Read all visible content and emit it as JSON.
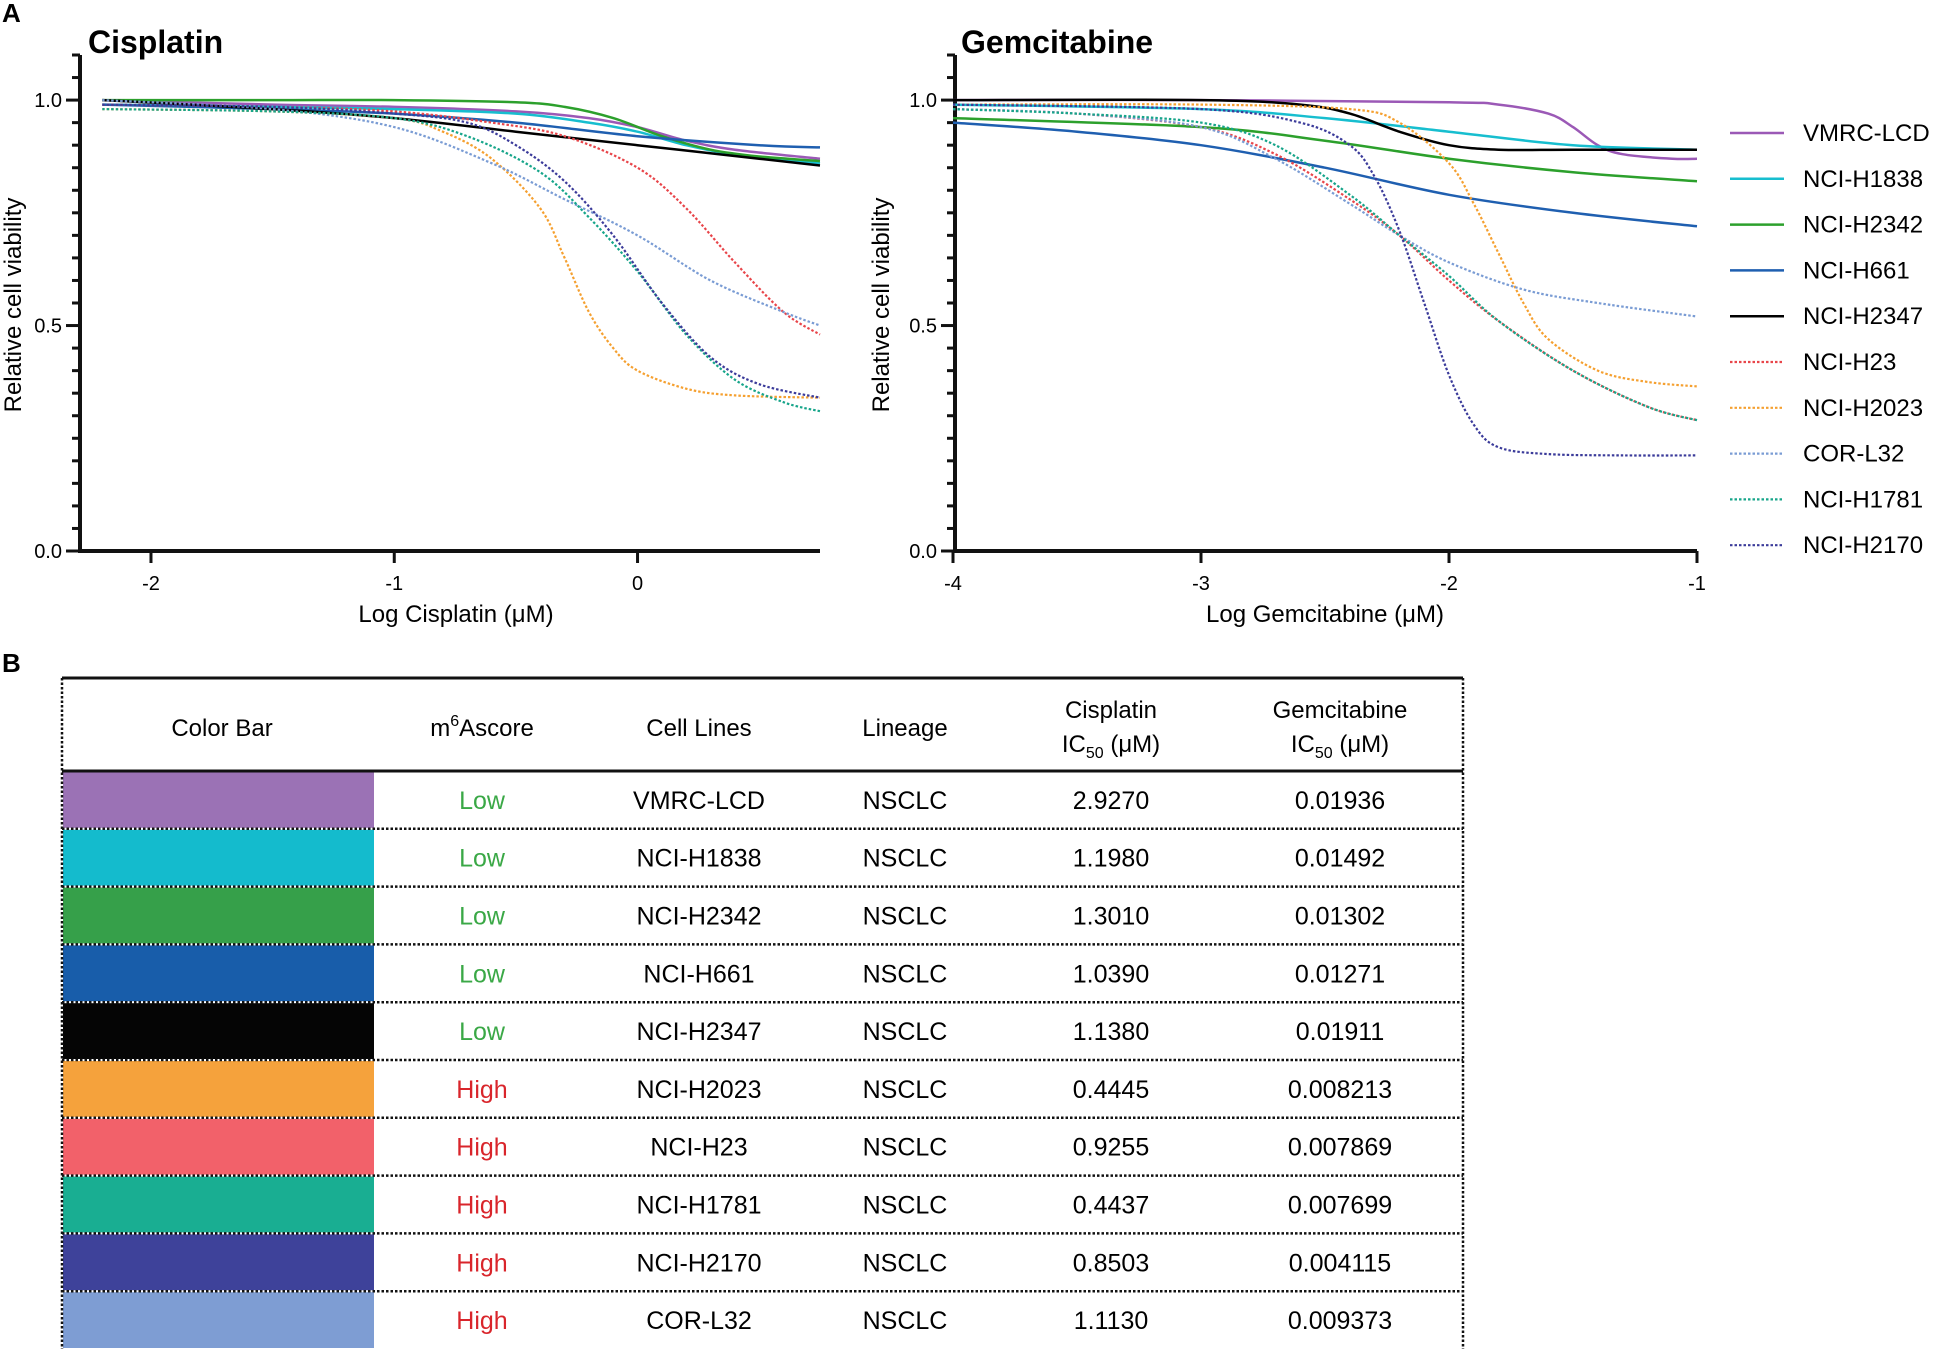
{
  "panels": {
    "a": "A",
    "b": "B"
  },
  "chart_data": [
    {
      "type": "line",
      "title": "Cisplatin",
      "xlabel": "Log Cisplatin (μM)",
      "ylabel": "Relative cell viability",
      "xlim": [
        -2.3,
        0.75
      ],
      "ylim": [
        0,
        1.1
      ],
      "xticks": [
        -2,
        -1,
        0
      ],
      "xtick_labels": [
        "-2",
        "-1",
        "0"
      ],
      "yticks": [
        0,
        0.5,
        1.0
      ],
      "ytick_labels": [
        "0.0",
        "0.5",
        "1.0"
      ],
      "series": [
        {
          "name": "VMRC-LCD",
          "x": [
            -2.2,
            -1.5,
            -1.0,
            -0.5,
            -0.2,
            0,
            0.2,
            0.4,
            0.75
          ],
          "y": [
            1.0,
            0.99,
            0.985,
            0.975,
            0.96,
            0.94,
            0.91,
            0.89,
            0.87
          ]
        },
        {
          "name": "NCI-H1838",
          "x": [
            -2.2,
            -1.5,
            -1.0,
            -0.5,
            -0.2,
            0,
            0.2,
            0.4,
            0.75
          ],
          "y": [
            0.99,
            0.985,
            0.98,
            0.97,
            0.95,
            0.93,
            0.9,
            0.88,
            0.86
          ]
        },
        {
          "name": "NCI-H2342",
          "x": [
            -2.2,
            -1.5,
            -1.0,
            -0.5,
            -0.3,
            -0.1,
            0.1,
            0.3,
            0.5,
            0.75
          ],
          "y": [
            1.0,
            1.0,
            1.0,
            0.995,
            0.985,
            0.96,
            0.92,
            0.89,
            0.875,
            0.865
          ]
        },
        {
          "name": "NCI-H661",
          "x": [
            -2.2,
            -1.5,
            -1.0,
            -0.5,
            0,
            0.5,
            0.75
          ],
          "y": [
            0.99,
            0.98,
            0.97,
            0.95,
            0.92,
            0.9,
            0.895
          ]
        },
        {
          "name": "NCI-H2347",
          "x": [
            -2.2,
            -1.5,
            -1.0,
            -0.5,
            0,
            0.5,
            0.75
          ],
          "y": [
            1.0,
            0.98,
            0.96,
            0.93,
            0.9,
            0.87,
            0.855
          ]
        },
        {
          "name": "NCI-H23",
          "x": [
            -2.2,
            -1.5,
            -1.0,
            -0.6,
            -0.3,
            0,
            0.2,
            0.4,
            0.6,
            0.75
          ],
          "y": [
            0.99,
            0.985,
            0.975,
            0.95,
            0.92,
            0.85,
            0.76,
            0.64,
            0.53,
            0.48
          ]
        },
        {
          "name": "NCI-H2023",
          "x": [
            -2.2,
            -1.5,
            -1.0,
            -0.8,
            -0.6,
            -0.4,
            -0.3,
            -0.2,
            -0.1,
            0,
            0.2,
            0.4,
            0.75
          ],
          "y": [
            0.98,
            0.975,
            0.96,
            0.93,
            0.87,
            0.76,
            0.65,
            0.53,
            0.45,
            0.4,
            0.36,
            0.345,
            0.34
          ]
        },
        {
          "name": "COR-L32",
          "x": [
            -2.2,
            -1.5,
            -1.0,
            -0.6,
            -0.3,
            0,
            0.3,
            0.6,
            0.75
          ],
          "y": [
            1.0,
            0.98,
            0.94,
            0.86,
            0.78,
            0.7,
            0.6,
            0.53,
            0.5
          ]
        },
        {
          "name": "NCI-H1781",
          "x": [
            -2.2,
            -1.5,
            -1.0,
            -0.7,
            -0.4,
            -0.2,
            0,
            0.2,
            0.4,
            0.6,
            0.75
          ],
          "y": [
            0.98,
            0.975,
            0.96,
            0.92,
            0.84,
            0.74,
            0.62,
            0.48,
            0.38,
            0.33,
            0.31
          ]
        },
        {
          "name": "NCI-H2170",
          "x": [
            -2.2,
            -1.5,
            -1.0,
            -0.7,
            -0.5,
            -0.3,
            -0.1,
            0.1,
            0.3,
            0.5,
            0.75
          ],
          "y": [
            0.99,
            0.985,
            0.97,
            0.95,
            0.9,
            0.82,
            0.7,
            0.55,
            0.43,
            0.37,
            0.34
          ]
        }
      ]
    },
    {
      "type": "line",
      "title": "Gemcitabine",
      "xlabel": "Log Gemcitabine (μM)",
      "ylabel": "Relative cell viability",
      "xlim": [
        -4,
        -1
      ],
      "ylim": [
        0,
        1.1
      ],
      "xticks": [
        -4,
        -3,
        -2,
        -1
      ],
      "xtick_labels": [
        "-4",
        "-3",
        "-2",
        "-1"
      ],
      "yticks": [
        0,
        0.5,
        1.0
      ],
      "ytick_labels": [
        "0.0",
        "0.5",
        "1.0"
      ],
      "series": [
        {
          "name": "VMRC-LCD",
          "x": [
            -4,
            -3,
            -2,
            -1.8,
            -1.6,
            -1.5,
            -1.4,
            -1.3,
            -1.1,
            -1
          ],
          "y": [
            1.0,
            1.0,
            0.995,
            0.99,
            0.97,
            0.94,
            0.9,
            0.88,
            0.87,
            0.87
          ]
        },
        {
          "name": "NCI-H1838",
          "x": [
            -4,
            -3,
            -2.5,
            -2,
            -1.5,
            -1
          ],
          "y": [
            0.99,
            0.98,
            0.96,
            0.93,
            0.9,
            0.89
          ]
        },
        {
          "name": "NCI-H2342",
          "x": [
            -4,
            -3,
            -2.5,
            -2,
            -1.5,
            -1
          ],
          "y": [
            0.96,
            0.94,
            0.91,
            0.87,
            0.84,
            0.82
          ]
        },
        {
          "name": "NCI-H661",
          "x": [
            -4,
            -3.5,
            -3,
            -2.5,
            -2,
            -1.5,
            -1
          ],
          "y": [
            0.95,
            0.93,
            0.9,
            0.85,
            0.79,
            0.75,
            0.72
          ]
        },
        {
          "name": "NCI-H2347",
          "x": [
            -4,
            -3,
            -2.6,
            -2.4,
            -2.2,
            -2.0,
            -1.8,
            -1.5,
            -1
          ],
          "y": [
            1.0,
            1.0,
            0.99,
            0.97,
            0.93,
            0.9,
            0.89,
            0.89,
            0.89
          ]
        },
        {
          "name": "NCI-H23",
          "x": [
            -4,
            -3.5,
            -3,
            -2.7,
            -2.4,
            -2.2,
            -2,
            -1.8,
            -1.5,
            -1.2,
            -1
          ],
          "y": [
            0.98,
            0.97,
            0.94,
            0.88,
            0.78,
            0.7,
            0.6,
            0.51,
            0.4,
            0.32,
            0.29
          ]
        },
        {
          "name": "NCI-H2023",
          "x": [
            -4,
            -3,
            -2.4,
            -2.2,
            -2.0,
            -1.9,
            -1.8,
            -1.7,
            -1.6,
            -1.4,
            -1.2,
            -1
          ],
          "y": [
            0.99,
            0.99,
            0.98,
            0.95,
            0.86,
            0.77,
            0.66,
            0.55,
            0.47,
            0.4,
            0.375,
            0.365
          ]
        },
        {
          "name": "COR-L32",
          "x": [
            -4,
            -3.5,
            -3,
            -2.7,
            -2.4,
            -2.2,
            -2,
            -1.7,
            -1.4,
            -1
          ],
          "y": [
            0.98,
            0.97,
            0.94,
            0.87,
            0.77,
            0.7,
            0.64,
            0.58,
            0.55,
            0.52
          ]
        },
        {
          "name": "NCI-H1781",
          "x": [
            -4,
            -3.5,
            -3,
            -2.7,
            -2.4,
            -2.2,
            -2,
            -1.8,
            -1.5,
            -1.2,
            -1
          ],
          "y": [
            0.98,
            0.97,
            0.95,
            0.9,
            0.79,
            0.7,
            0.61,
            0.51,
            0.4,
            0.32,
            0.29
          ]
        },
        {
          "name": "NCI-H2170",
          "x": [
            -4,
            -3,
            -2.6,
            -2.4,
            -2.3,
            -2.2,
            -2.1,
            -2.0,
            -1.9,
            -1.8,
            -1.6,
            -1.3,
            -1
          ],
          "y": [
            0.99,
            0.98,
            0.95,
            0.9,
            0.83,
            0.71,
            0.55,
            0.39,
            0.28,
            0.23,
            0.215,
            0.212,
            0.212
          ]
        }
      ]
    }
  ],
  "legend": [
    {
      "name": "VMRC-LCD",
      "color": "#9B59B6",
      "dash": false
    },
    {
      "name": "NCI-H1838",
      "color": "#17BECF",
      "dash": false
    },
    {
      "name": "NCI-H2342",
      "color": "#2CA02C",
      "dash": false
    },
    {
      "name": "NCI-H661",
      "color": "#1F5FB0",
      "dash": false
    },
    {
      "name": "NCI-H2347",
      "color": "#000000",
      "dash": false
    },
    {
      "name": "NCI-H23",
      "color": "#E8454A",
      "dash": true
    },
    {
      "name": "NCI-H2023",
      "color": "#F5A030",
      "dash": true
    },
    {
      "name": "COR-L32",
      "color": "#7A9CD4",
      "dash": true
    },
    {
      "name": "NCI-H1781",
      "color": "#17A58A",
      "dash": true
    },
    {
      "name": "NCI-H2170",
      "color": "#3B3B9A",
      "dash": true
    }
  ],
  "table": {
    "headers": {
      "color_bar": "Color Bar",
      "m6a_base": "m",
      "m6a_sup": "6",
      "m6a_rest": "Ascore",
      "cell_lines": "Cell Lines",
      "lineage": "Lineage",
      "cis_line1": "Cisplatin",
      "cis_ic": "IC",
      "cis_sub": "50",
      "cis_unit": " (μM)",
      "gem_line1": "Gemcitabine",
      "gem_ic": "IC",
      "gem_sub": "50",
      "gem_unit": " (μM)"
    },
    "rows": [
      {
        "color": "#9B72B5",
        "score": "Low",
        "cell_line": "VMRC-LCD",
        "lineage": "NSCLC",
        "cisplatin": "2.9270",
        "gemcitabine": "0.01936"
      },
      {
        "color": "#14BBCD",
        "score": "Low",
        "cell_line": "NCI-H1838",
        "lineage": "NSCLC",
        "cisplatin": "1.1980",
        "gemcitabine": "0.01492"
      },
      {
        "color": "#36A04A",
        "score": "Low",
        "cell_line": "NCI-H2342",
        "lineage": "NSCLC",
        "cisplatin": "1.3010",
        "gemcitabine": "0.01302"
      },
      {
        "color": "#185DAA",
        "score": "Low",
        "cell_line": "NCI-H661",
        "lineage": "NSCLC",
        "cisplatin": "1.0390",
        "gemcitabine": "0.01271"
      },
      {
        "color": "#050505",
        "score": "Low",
        "cell_line": "NCI-H2347",
        "lineage": "NSCLC",
        "cisplatin": "1.1380",
        "gemcitabine": "0.01911"
      },
      {
        "color": "#F5A23C",
        "score": "High",
        "cell_line": "NCI-H2023",
        "lineage": "NSCLC",
        "cisplatin": "0.4445",
        "gemcitabine": "0.008213"
      },
      {
        "color": "#F2616A",
        "score": "High",
        "cell_line": "NCI-H23",
        "lineage": "NSCLC",
        "cisplatin": "0.9255",
        "gemcitabine": "0.007869"
      },
      {
        "color": "#19AE92",
        "score": "High",
        "cell_line": "NCI-H1781",
        "lineage": "NSCLC",
        "cisplatin": "0.4437",
        "gemcitabine": "0.007699"
      },
      {
        "color": "#3E429A",
        "score": "High",
        "cell_line": "NCI-H2170",
        "lineage": "NSCLC",
        "cisplatin": "0.8503",
        "gemcitabine": "0.004115"
      },
      {
        "color": "#7E9DD3",
        "score": "High",
        "cell_line": "COR-L32",
        "lineage": "NSCLC",
        "cisplatin": "1.1130",
        "gemcitabine": "0.009373"
      }
    ],
    "score_colors": {
      "Low": "#3AA846",
      "High": "#D9252B"
    }
  }
}
